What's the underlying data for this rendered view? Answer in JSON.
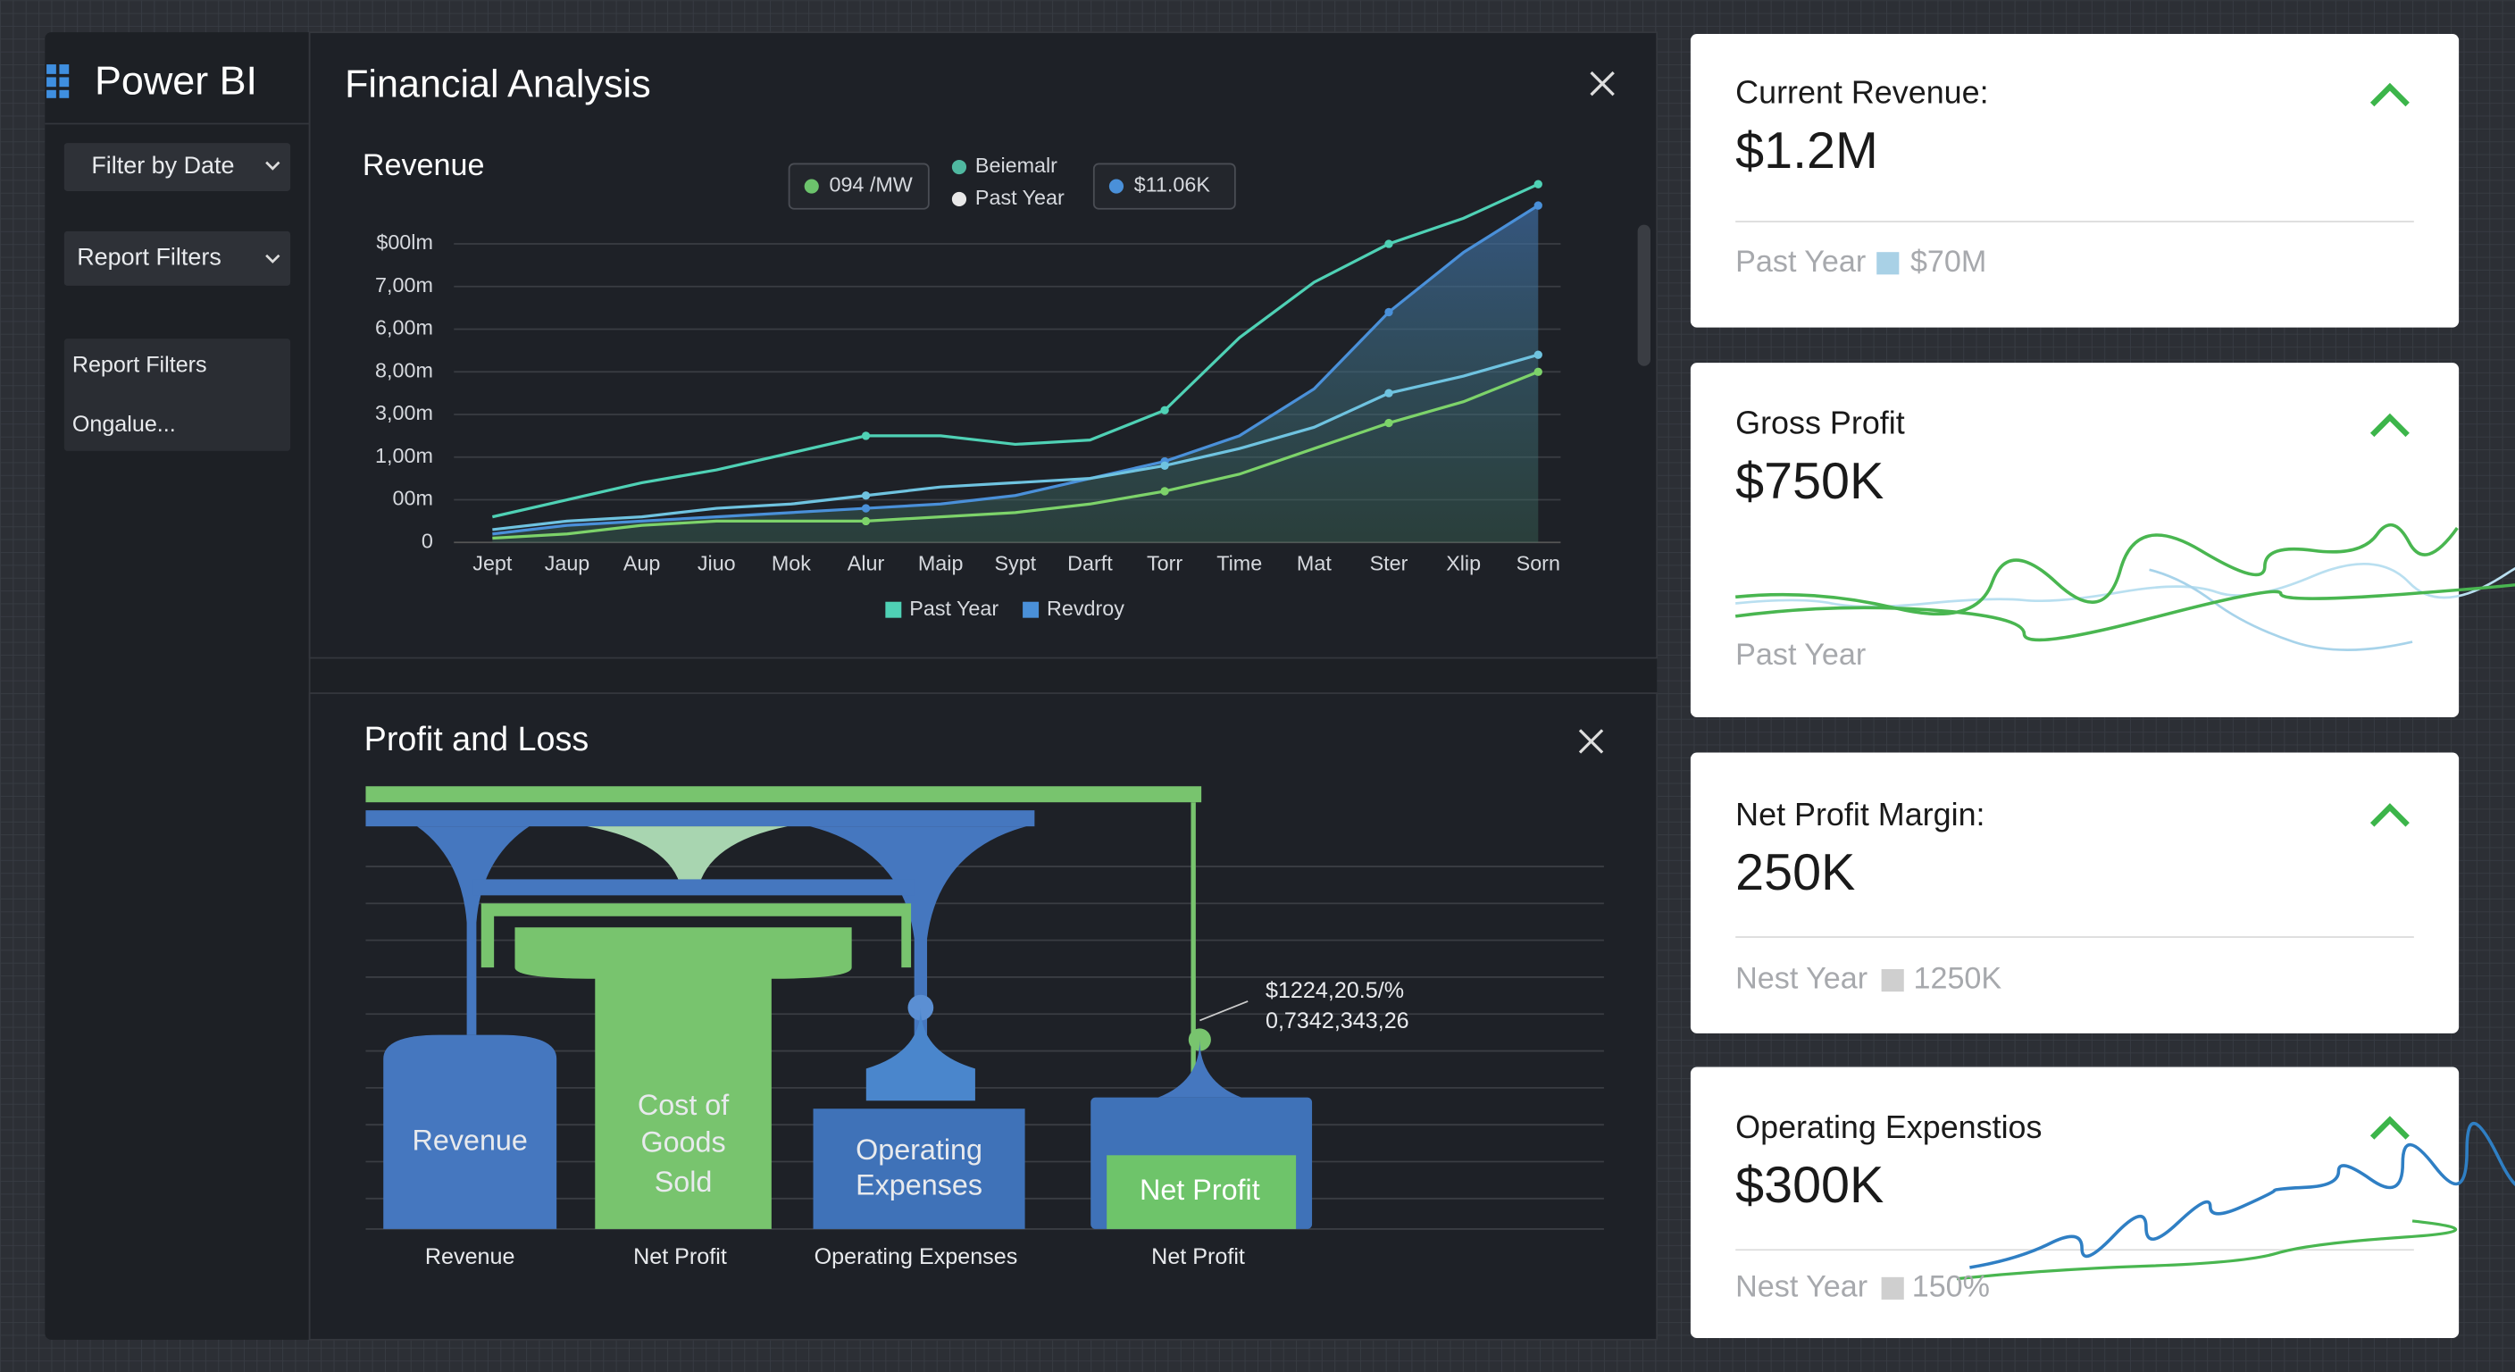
{
  "sidebar": {
    "brand": "Power BI",
    "buttons": [
      "Filter by Date",
      "Report Filters"
    ],
    "panel": [
      "Report Filters",
      "Ongalue..."
    ]
  },
  "financial_panel": {
    "title": "Financial Analysis"
  },
  "chart_data": {
    "type": "line",
    "title": "Revenue",
    "categories": [
      "Jept",
      "Jaup",
      "Aup",
      "Jiuo",
      "Mok",
      "Alur",
      "Maip",
      "Sypt",
      "Darft",
      "Torr",
      "Time",
      "Mat",
      "Ster",
      "Xlip",
      "Sorn"
    ],
    "ylim": [
      0,
      8.5
    ],
    "yticks": [
      {
        "value": 0,
        "label": "0"
      },
      {
        "value": 1,
        "label": "00m"
      },
      {
        "value": 2,
        "label": "1,00m"
      },
      {
        "value": 3,
        "label": "3,00m"
      },
      {
        "value": 4,
        "label": "8,00m"
      },
      {
        "value": 5,
        "label": "6,00m"
      },
      {
        "value": 6,
        "label": "7,00m"
      },
      {
        "value": 7,
        "label": "$00lm"
      }
    ],
    "grid": true,
    "top_legend": [
      {
        "label": "094 /MW",
        "color": "#6cc36c"
      },
      {
        "label": "Beiemalr",
        "color": "#4fb8a0"
      },
      {
        "label": "Past Year",
        "color": "#e8e8e8"
      },
      {
        "label": "$11.06K",
        "color": "#4a90d9"
      }
    ],
    "series": [
      {
        "name": "Past Year",
        "color": "#4fd1b5",
        "values": [
          0.6,
          1.0,
          1.4,
          1.7,
          2.1,
          2.5,
          2.5,
          2.3,
          2.4,
          3.1,
          4.8,
          6.1,
          7.0,
          7.6,
          8.4
        ]
      },
      {
        "name": "Revdroy",
        "color": "#4a90d9",
        "area": true,
        "values": [
          0.2,
          0.4,
          0.5,
          0.6,
          0.7,
          0.8,
          0.9,
          1.1,
          1.5,
          1.9,
          2.5,
          3.6,
          5.4,
          6.8,
          7.9
        ]
      },
      {
        "color": "#6fc3e0",
        "values": [
          0.3,
          0.5,
          0.6,
          0.8,
          0.9,
          1.1,
          1.3,
          1.4,
          1.5,
          1.8,
          2.2,
          2.7,
          3.5,
          3.9,
          4.4
        ]
      },
      {
        "color": "#7dd36a",
        "values": [
          0.1,
          0.2,
          0.4,
          0.5,
          0.5,
          0.5,
          0.6,
          0.7,
          0.9,
          1.2,
          1.6,
          2.2,
          2.8,
          3.3,
          4.0
        ]
      }
    ]
  },
  "profit_panel": {
    "title": "Profit and Loss",
    "blocks": {
      "revenue": "Revenue",
      "cogs": [
        "Cost of",
        "Goods",
        "Sold"
      ],
      "opex": [
        "Operating",
        "Expenses"
      ],
      "net": "Net Profit"
    },
    "annotation": [
      "$1224,20.5/%",
      "0,7342,343,26"
    ],
    "bottom_labels": [
      "Revenue",
      "Net Profit",
      "Operating Expenses",
      "Net Profit"
    ]
  },
  "cards": [
    {
      "title": "Current Revenue:",
      "value": "$1.2M",
      "sub_label": "Past Year",
      "sub_value": "$70M"
    },
    {
      "title": "Gross Profit",
      "value": "$750K",
      "sub_label": "Past Year"
    },
    {
      "title": "Net Profit Margin:",
      "value": "250K",
      "sub_label": "Nest Year",
      "sub_value": "1250K"
    },
    {
      "title": "Operating Expenstios",
      "value": "$300K",
      "sub_label": "Nest Year",
      "sub_value": "150%"
    }
  ]
}
